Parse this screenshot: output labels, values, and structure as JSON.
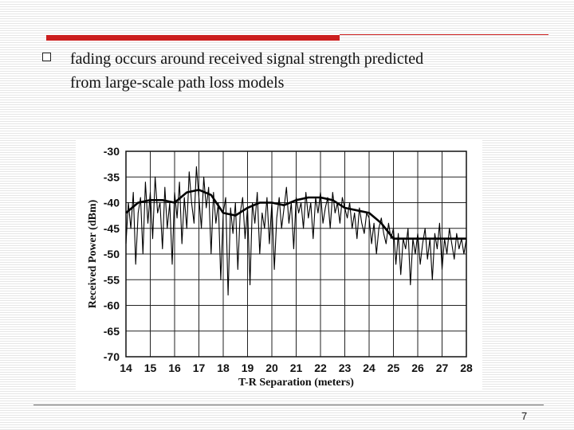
{
  "slide": {
    "bullet_text_line1": "fading occurs around received signal strength predicted",
    "bullet_text_line2": "from large-scale path loss models",
    "page_number": "7",
    "accent_color": "#cc1f1f"
  },
  "chart_data": {
    "type": "line",
    "title": "",
    "xlabel": "T-R Separation (meters)",
    "ylabel": "Received Power (dBm)",
    "xlim": [
      14,
      28
    ],
    "ylim": [
      -70,
      -30
    ],
    "x_ticks": [
      "14",
      "15",
      "16",
      "17",
      "18",
      "19",
      "20",
      "21",
      "22",
      "23",
      "24",
      "25",
      "26",
      "27",
      "28"
    ],
    "y_ticks": [
      "-30",
      "-35",
      "-40",
      "-45",
      "-50",
      "-55",
      "-60",
      "-65",
      "-70"
    ],
    "grid": true,
    "series": [
      {
        "name": "",
        "style": "thin",
        "x": [
          14.0,
          14.1,
          14.2,
          14.3,
          14.4,
          14.5,
          14.6,
          14.7,
          14.8,
          14.9,
          15.0,
          15.1,
          15.2,
          15.3,
          15.4,
          15.5,
          15.6,
          15.7,
          15.8,
          15.9,
          16.0,
          16.1,
          16.2,
          16.3,
          16.4,
          16.5,
          16.6,
          16.7,
          16.8,
          16.9,
          17.0,
          17.1,
          17.2,
          17.3,
          17.4,
          17.5,
          17.6,
          17.7,
          17.8,
          17.9,
          18.0,
          18.1,
          18.2,
          18.3,
          18.4,
          18.5,
          18.6,
          18.7,
          18.8,
          18.9,
          19.0,
          19.1,
          19.2,
          19.3,
          19.4,
          19.5,
          19.6,
          19.7,
          19.8,
          19.9,
          20.0,
          20.1,
          20.2,
          20.3,
          20.4,
          20.5,
          20.6,
          20.7,
          20.8,
          20.9,
          21.0,
          21.1,
          21.2,
          21.3,
          21.4,
          21.5,
          21.6,
          21.7,
          21.8,
          21.9,
          22.0,
          22.1,
          22.2,
          22.3,
          22.4,
          22.5,
          22.6,
          22.7,
          22.8,
          22.9,
          23.0,
          23.1,
          23.2,
          23.3,
          23.4,
          23.5,
          23.6,
          23.7,
          23.8,
          23.9,
          24.0,
          24.1,
          24.2,
          24.3,
          24.4,
          24.5,
          24.6,
          24.7,
          24.8,
          24.9,
          25.0,
          25.1,
          25.2,
          25.3,
          25.4,
          25.5,
          25.6,
          25.7,
          25.8,
          25.9,
          26.0,
          26.1,
          26.2,
          26.3,
          26.4,
          26.5,
          26.6,
          26.7,
          26.8,
          26.9,
          27.0,
          27.1,
          27.2,
          27.3,
          27.4,
          27.5,
          27.6,
          27.7,
          27.8,
          27.9,
          28.0
        ],
        "values": [
          -48,
          -40,
          -45,
          -38,
          -52,
          -42,
          -39,
          -50,
          -36,
          -44,
          -38,
          -47,
          -35,
          -42,
          -40,
          -49,
          -37,
          -45,
          -40,
          -52,
          -38,
          -43,
          -36,
          -48,
          -39,
          -45,
          -34,
          -40,
          -44,
          -33,
          -39,
          -45,
          -35,
          -41,
          -37,
          -50,
          -38,
          -44,
          -40,
          -55,
          -42,
          -39,
          -58,
          -41,
          -46,
          -40,
          -53,
          -42,
          -39,
          -47,
          -41,
          -56,
          -40,
          -44,
          -38,
          -50,
          -42,
          -45,
          -39,
          -48,
          -40,
          -53,
          -43,
          -39,
          -45,
          -41,
          -37,
          -44,
          -40,
          -49,
          -39,
          -42,
          -40,
          -45,
          -38,
          -43,
          -40,
          -47,
          -39,
          -42,
          -38,
          -44,
          -41,
          -39,
          -45,
          -38,
          -42,
          -40,
          -44,
          -39,
          -41,
          -43,
          -40,
          -45,
          -42,
          -47,
          -41,
          -44,
          -46,
          -42,
          -43,
          -48,
          -44,
          -50,
          -45,
          -43,
          -46,
          -48,
          -44,
          -47,
          -45,
          -52,
          -46,
          -54,
          -47,
          -49,
          -45,
          -56,
          -47,
          -50,
          -46,
          -52,
          -48,
          -45,
          -51,
          -47,
          -55,
          -46,
          -49,
          -44,
          -53,
          -47,
          -50,
          -45,
          -48,
          -51,
          -46,
          -49,
          -47,
          -50,
          -47
        ]
      },
      {
        "name": "",
        "style": "thick",
        "x": [
          14.0,
          14.5,
          15.0,
          15.5,
          16.0,
          16.5,
          17.0,
          17.5,
          18.0,
          18.5,
          19.0,
          19.5,
          20.0,
          20.5,
          21.0,
          21.5,
          22.0,
          22.5,
          23.0,
          23.5,
          24.0,
          24.5,
          25.0,
          25.5,
          26.0,
          26.5,
          27.0,
          27.5,
          28.0
        ],
        "values": [
          -42,
          -40,
          -39.5,
          -39.5,
          -40,
          -38,
          -37.5,
          -38.5,
          -42,
          -42.5,
          -41,
          -40,
          -40,
          -40.5,
          -39.5,
          -39,
          -39,
          -39.5,
          -41,
          -41.5,
          -42,
          -44,
          -47,
          -47,
          -47,
          -47,
          -47,
          -47,
          -47
        ]
      }
    ]
  }
}
